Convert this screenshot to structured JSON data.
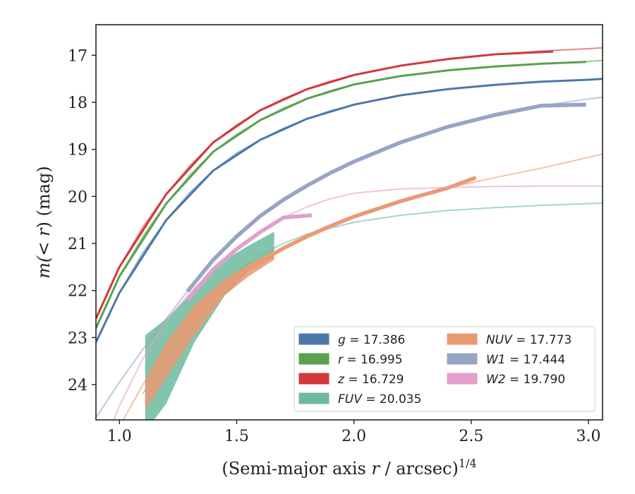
{
  "chart_data": {
    "type": "line",
    "xlabel_main": "(Semi-major axis ",
    "xlabel_var": "r",
    "xlabel_unit": " / arcsec)",
    "xlabel_exp": "1/4",
    "ylabel_prefix": "m(< ",
    "ylabel_var": "r",
    "ylabel_suffix": ") (mag)",
    "xlim": [
      0.9,
      3.06
    ],
    "ylim": [
      24.75,
      16.35
    ],
    "y_inverted": true,
    "xticks": [
      1.0,
      1.5,
      2.0,
      2.5,
      3.0
    ],
    "xtick_labels": [
      "1.0",
      "1.5",
      "2.0",
      "2.5",
      "3.0"
    ],
    "yticks": [
      17,
      18,
      19,
      20,
      21,
      22,
      23,
      24
    ],
    "ytick_labels": [
      "17",
      "18",
      "19",
      "20",
      "21",
      "22",
      "23",
      "24"
    ],
    "legend_position": "lower-right",
    "series": [
      {
        "name": "g = 17.386",
        "label_var": "g",
        "label_value": "= 17.386",
        "color": "#4c78a8",
        "model": [
          [
            0.9,
            23.1
          ],
          [
            1.0,
            22.05
          ],
          [
            1.1,
            21.2
          ],
          [
            1.2,
            20.5
          ],
          [
            1.3,
            19.92
          ],
          [
            1.4,
            19.45
          ],
          [
            1.5,
            19.08
          ],
          [
            1.6,
            18.8
          ],
          [
            1.7,
            18.55
          ],
          [
            1.8,
            18.35
          ],
          [
            1.9,
            18.18
          ],
          [
            2.0,
            18.05
          ],
          [
            2.2,
            17.85
          ],
          [
            2.4,
            17.72
          ],
          [
            2.6,
            17.63
          ],
          [
            2.8,
            17.56
          ],
          [
            3.0,
            17.52
          ],
          [
            3.06,
            17.5
          ]
        ],
        "data": [
          [
            0.9,
            23.1
          ],
          [
            1.0,
            22.05
          ],
          [
            1.2,
            20.5
          ],
          [
            1.4,
            19.45
          ],
          [
            1.6,
            18.8
          ],
          [
            1.8,
            18.35
          ],
          [
            2.0,
            18.05
          ],
          [
            2.2,
            17.85
          ],
          [
            2.4,
            17.72
          ],
          [
            2.6,
            17.63
          ],
          [
            2.8,
            17.56
          ],
          [
            3.0,
            17.52
          ],
          [
            3.06,
            17.5
          ]
        ],
        "band_upper": [],
        "band_lower": []
      },
      {
        "name": "r = 16.995",
        "label_var": "r",
        "label_value": "= 16.995",
        "color": "#59a14f",
        "model": [
          [
            0.9,
            22.8
          ],
          [
            1.0,
            21.7
          ],
          [
            1.1,
            20.85
          ],
          [
            1.2,
            20.15
          ],
          [
            1.3,
            19.55
          ],
          [
            1.4,
            19.05
          ],
          [
            1.5,
            18.68
          ],
          [
            1.6,
            18.38
          ],
          [
            1.7,
            18.12
          ],
          [
            1.8,
            17.92
          ],
          [
            1.9,
            17.75
          ],
          [
            2.0,
            17.62
          ],
          [
            2.2,
            17.44
          ],
          [
            2.4,
            17.32
          ],
          [
            2.6,
            17.24
          ],
          [
            2.8,
            17.18
          ],
          [
            3.0,
            17.13
          ],
          [
            3.06,
            17.11
          ]
        ],
        "data": [
          [
            0.9,
            22.8
          ],
          [
            1.0,
            21.7
          ],
          [
            1.2,
            20.15
          ],
          [
            1.4,
            19.05
          ],
          [
            1.6,
            18.38
          ],
          [
            1.8,
            17.92
          ],
          [
            2.0,
            17.62
          ],
          [
            2.2,
            17.44
          ],
          [
            2.4,
            17.32
          ],
          [
            2.6,
            17.24
          ],
          [
            2.8,
            17.18
          ],
          [
            2.99,
            17.14
          ]
        ],
        "band_upper": [],
        "band_lower": []
      },
      {
        "name": "z = 16.729",
        "label_var": "z",
        "label_value": "= 16.729",
        "color": "#d1383b",
        "model": [
          [
            0.9,
            22.6
          ],
          [
            1.0,
            21.5
          ],
          [
            1.1,
            20.65
          ],
          [
            1.2,
            19.95
          ],
          [
            1.3,
            19.35
          ],
          [
            1.4,
            18.85
          ],
          [
            1.5,
            18.48
          ],
          [
            1.6,
            18.17
          ],
          [
            1.7,
            17.92
          ],
          [
            1.8,
            17.72
          ],
          [
            1.9,
            17.55
          ],
          [
            2.0,
            17.42
          ],
          [
            2.2,
            17.22
          ],
          [
            2.4,
            17.08
          ],
          [
            2.6,
            16.98
          ],
          [
            2.8,
            16.91
          ],
          [
            3.0,
            16.86
          ],
          [
            3.06,
            16.84
          ]
        ],
        "data": [
          [
            0.9,
            22.6
          ],
          [
            1.0,
            21.5
          ],
          [
            1.2,
            19.95
          ],
          [
            1.4,
            18.85
          ],
          [
            1.6,
            18.17
          ],
          [
            1.8,
            17.72
          ],
          [
            2.0,
            17.42
          ],
          [
            2.2,
            17.22
          ],
          [
            2.4,
            17.08
          ],
          [
            2.6,
            16.98
          ],
          [
            2.85,
            16.92
          ]
        ],
        "band_upper": [],
        "band_lower": []
      },
      {
        "name": "FUV = 20.035",
        "label_var": "FUV",
        "label_value": "= 20.035",
        "color": "#6dba9e",
        "model": [
          [
            1.1,
            24.2
          ],
          [
            1.2,
            23.3
          ],
          [
            1.3,
            22.6
          ],
          [
            1.4,
            22.05
          ],
          [
            1.5,
            21.6
          ],
          [
            1.6,
            21.25
          ],
          [
            1.7,
            21.0
          ],
          [
            1.8,
            20.8
          ],
          [
            2.0,
            20.55
          ],
          [
            2.2,
            20.4
          ],
          [
            2.4,
            20.3
          ],
          [
            2.6,
            20.24
          ],
          [
            2.8,
            20.19
          ],
          [
            3.06,
            20.14
          ]
        ],
        "data": [],
        "band_upper": [
          [
            1.11,
            22.95
          ],
          [
            1.2,
            22.6
          ],
          [
            1.3,
            22.1
          ],
          [
            1.45,
            21.35
          ],
          [
            1.55,
            21.05
          ],
          [
            1.66,
            20.75
          ]
        ],
        "band_lower": [
          [
            1.11,
            25.0
          ],
          [
            1.2,
            24.4
          ],
          [
            1.32,
            23.1
          ],
          [
            1.45,
            22.1
          ],
          [
            1.55,
            21.6
          ],
          [
            1.66,
            21.3
          ]
        ]
      },
      {
        "name": "NUV = 17.773",
        "label_var": "NUV",
        "label_value": "= 17.773",
        "color": "#ea9a72",
        "model": [
          [
            0.9,
            26.0
          ],
          [
            1.0,
            24.9
          ],
          [
            1.1,
            24.0
          ],
          [
            1.2,
            23.25
          ],
          [
            1.3,
            22.65
          ],
          [
            1.4,
            22.15
          ],
          [
            1.5,
            21.72
          ],
          [
            1.6,
            21.38
          ],
          [
            1.7,
            21.1
          ],
          [
            1.8,
            20.85
          ],
          [
            1.9,
            20.63
          ],
          [
            2.0,
            20.43
          ],
          [
            2.2,
            20.1
          ],
          [
            2.4,
            19.82
          ],
          [
            2.6,
            19.6
          ],
          [
            2.8,
            19.4
          ],
          [
            3.06,
            19.1
          ]
        ],
        "data": [
          [
            1.3,
            22.65
          ],
          [
            1.4,
            22.15
          ],
          [
            1.5,
            21.72
          ],
          [
            1.6,
            21.38
          ],
          [
            1.7,
            21.1
          ],
          [
            1.8,
            20.85
          ],
          [
            1.9,
            20.63
          ],
          [
            2.0,
            20.43
          ],
          [
            2.2,
            20.1
          ],
          [
            2.4,
            19.82
          ],
          [
            2.52,
            19.6
          ]
        ],
        "band_upper": [
          [
            1.11,
            23.9
          ],
          [
            1.2,
            23.1
          ],
          [
            1.32,
            22.3
          ],
          [
            1.45,
            21.75
          ],
          [
            1.55,
            21.45
          ],
          [
            1.66,
            21.15
          ]
        ],
        "band_lower": [
          [
            1.11,
            24.55
          ],
          [
            1.2,
            23.85
          ],
          [
            1.32,
            22.95
          ],
          [
            1.45,
            22.1
          ],
          [
            1.55,
            21.7
          ],
          [
            1.66,
            21.35
          ]
        ]
      },
      {
        "name": "W1 = 17.444",
        "label_var": "W1",
        "label_value": "= 17.444",
        "color": "#97a4c6",
        "model": [
          [
            0.9,
            24.7
          ],
          [
            1.0,
            23.95
          ],
          [
            1.1,
            23.25
          ],
          [
            1.2,
            22.6
          ],
          [
            1.3,
            21.95
          ],
          [
            1.4,
            21.35
          ],
          [
            1.5,
            20.85
          ],
          [
            1.6,
            20.42
          ],
          [
            1.7,
            20.07
          ],
          [
            1.8,
            19.77
          ],
          [
            1.9,
            19.5
          ],
          [
            2.0,
            19.26
          ],
          [
            2.2,
            18.85
          ],
          [
            2.4,
            18.52
          ],
          [
            2.6,
            18.27
          ],
          [
            2.8,
            18.07
          ],
          [
            3.0,
            17.93
          ],
          [
            3.06,
            17.89
          ]
        ],
        "data": [
          [
            1.29,
            22.02
          ],
          [
            1.4,
            21.35
          ],
          [
            1.5,
            20.85
          ],
          [
            1.6,
            20.42
          ],
          [
            1.7,
            20.07
          ],
          [
            1.8,
            19.77
          ],
          [
            1.9,
            19.5
          ],
          [
            2.0,
            19.26
          ],
          [
            2.2,
            18.85
          ],
          [
            2.4,
            18.52
          ],
          [
            2.6,
            18.27
          ],
          [
            2.8,
            18.07
          ],
          [
            2.99,
            18.05
          ]
        ],
        "band_upper": [],
        "band_lower": []
      },
      {
        "name": "W2 = 19.790",
        "label_var": "W2",
        "label_value": "= 19.790",
        "color": "#e39ecb",
        "model": [
          [
            0.9,
            25.7
          ],
          [
            1.0,
            24.45
          ],
          [
            1.1,
            23.45
          ],
          [
            1.2,
            22.65
          ],
          [
            1.3,
            22.05
          ],
          [
            1.4,
            21.55
          ],
          [
            1.5,
            21.12
          ],
          [
            1.6,
            20.76
          ],
          [
            1.7,
            20.45
          ],
          [
            1.8,
            20.22
          ],
          [
            1.9,
            20.05
          ],
          [
            2.0,
            19.93
          ],
          [
            2.2,
            19.84
          ],
          [
            2.4,
            19.81
          ],
          [
            2.6,
            19.79
          ],
          [
            2.8,
            19.78
          ],
          [
            3.06,
            19.78
          ]
        ],
        "data": [
          [
            1.29,
            22.2
          ],
          [
            1.4,
            21.55
          ],
          [
            1.5,
            21.12
          ],
          [
            1.6,
            20.76
          ],
          [
            1.7,
            20.45
          ],
          [
            1.82,
            20.4
          ]
        ],
        "band_upper": [],
        "band_lower": []
      }
    ]
  }
}
